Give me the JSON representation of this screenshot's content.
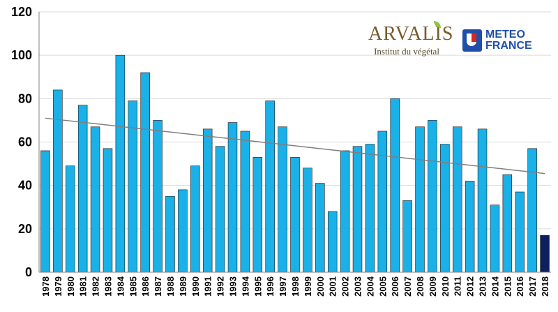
{
  "chart_data": {
    "type": "bar",
    "categories": [
      "1978",
      "1979",
      "1980",
      "1981",
      "1982",
      "1983",
      "1984",
      "1985",
      "1986",
      "1987",
      "1988",
      "1989",
      "1990",
      "1991",
      "1992",
      "1993",
      "1994",
      "1995",
      "1996",
      "1997",
      "1998",
      "1999",
      "2000",
      "2001",
      "2002",
      "2003",
      "2004",
      "2005",
      "2006",
      "2007",
      "2008",
      "2009",
      "2010",
      "2011",
      "2012",
      "2013",
      "2014",
      "2015",
      "2016",
      "2017",
      "2018"
    ],
    "values": [
      56,
      84,
      49,
      77,
      67,
      57,
      100,
      79,
      92,
      70,
      35,
      38,
      49,
      66,
      58,
      69,
      65,
      53,
      79,
      67,
      53,
      48,
      41,
      28,
      56,
      58,
      59,
      65,
      80,
      33,
      67,
      70,
      59,
      67,
      42,
      66,
      31,
      45,
      37,
      57,
      17
    ],
    "ylim": [
      0,
      120
    ],
    "yticks": [
      0,
      20,
      40,
      60,
      80,
      100,
      120
    ],
    "grid": "horizontal",
    "trendline": {
      "start": 71,
      "end": 45.5
    },
    "colors": {
      "bar": "#1ab0e8",
      "highlight": "#0d1f5c",
      "highlight_category": "2018",
      "trend": "#7f7f7f",
      "grid": "#d9d9d9"
    }
  },
  "logos": {
    "arvalis": {
      "name": "ARVALIS",
      "subtitle": "Institut du végétal"
    },
    "meteo": {
      "line1": "METEO",
      "line2": "FRANCE"
    }
  }
}
